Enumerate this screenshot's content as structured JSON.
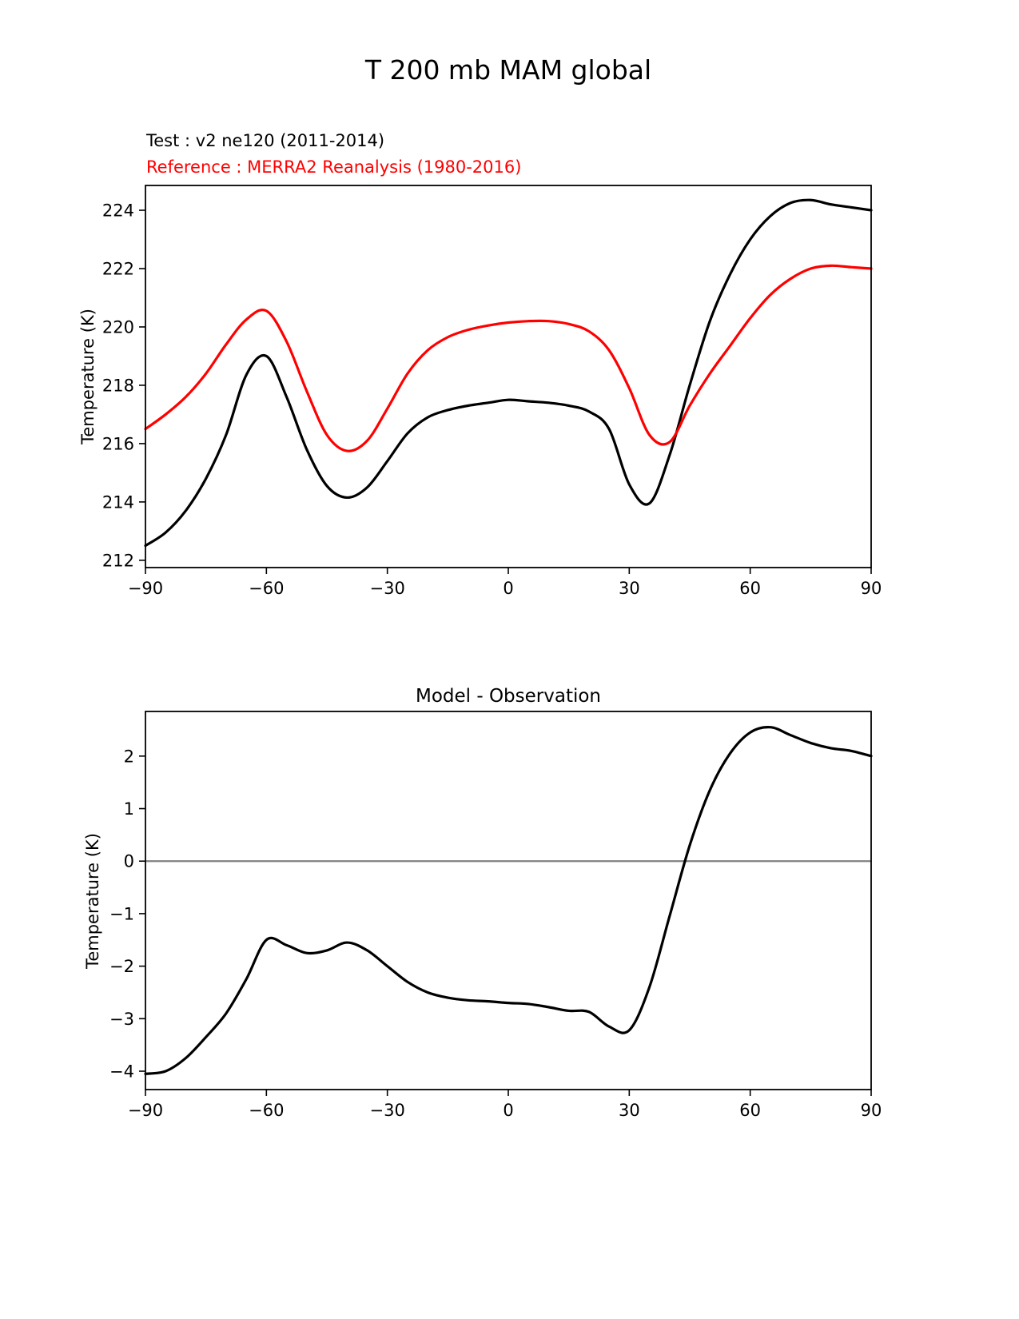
{
  "page": {
    "title": "T 200 mb MAM global",
    "background": "#ffffff"
  },
  "legend": {
    "test_label": "Test : v2 ne120 (2011-2014)",
    "test_color": "#000000",
    "reference_label": "Reference : MERRA2 Reanalysis (1980-2016)",
    "reference_color": "#ff0000"
  },
  "chart_data": [
    {
      "type": "line",
      "title": "",
      "xlabel": "",
      "ylabel": "Temperature (K)",
      "xlim": [
        -90,
        90
      ],
      "ylim": [
        211.75,
        224.85
      ],
      "xticks": [
        -90,
        -60,
        -30,
        0,
        30,
        60,
        90
      ],
      "yticks": [
        212,
        214,
        216,
        218,
        220,
        222,
        224
      ],
      "grid": false,
      "legend_position": "top-left-above",
      "x": [
        -90,
        -85,
        -80,
        -75,
        -70,
        -65,
        -60,
        -55,
        -50,
        -45,
        -40,
        -35,
        -30,
        -25,
        -20,
        -15,
        -10,
        -5,
        0,
        5,
        10,
        15,
        20,
        25,
        30,
        35,
        40,
        45,
        50,
        55,
        60,
        65,
        70,
        75,
        80,
        85,
        90
      ],
      "series": [
        {
          "name": "Test : v2 ne120 (2011-2014)",
          "color": "#000000",
          "values": [
            212.5,
            212.95,
            213.7,
            214.8,
            216.3,
            218.35,
            219.0,
            217.6,
            215.8,
            214.55,
            214.15,
            214.5,
            215.4,
            216.35,
            216.9,
            217.15,
            217.3,
            217.4,
            217.5,
            217.45,
            217.4,
            217.3,
            217.1,
            216.5,
            214.6,
            213.95,
            215.6,
            218.0,
            220.2,
            221.8,
            223.0,
            223.8,
            224.25,
            224.35,
            224.2,
            224.1,
            224.0
          ]
        },
        {
          "name": "Reference : MERRA2 Reanalysis (1980-2016)",
          "color": "#ff0000",
          "values": [
            216.5,
            217.0,
            217.6,
            218.4,
            219.4,
            220.25,
            220.55,
            219.5,
            217.8,
            216.3,
            215.75,
            216.1,
            217.2,
            218.4,
            219.2,
            219.65,
            219.9,
            220.05,
            220.15,
            220.2,
            220.2,
            220.1,
            219.85,
            219.2,
            217.9,
            216.3,
            216.05,
            217.3,
            218.4,
            219.35,
            220.3,
            221.1,
            221.65,
            222.0,
            222.1,
            222.05,
            222.0
          ]
        }
      ],
      "zero_line": false
    },
    {
      "type": "line",
      "title": "Model - Observation",
      "xlabel": "",
      "ylabel": "Temperature (K)",
      "xlim": [
        -90,
        90
      ],
      "ylim": [
        -4.35,
        2.85
      ],
      "xticks": [
        -90,
        -60,
        -30,
        0,
        30,
        60,
        90
      ],
      "yticks": [
        -4,
        -3,
        -2,
        -1,
        0,
        1,
        2
      ],
      "grid": false,
      "x": [
        -90,
        -85,
        -80,
        -75,
        -70,
        -65,
        -60,
        -55,
        -50,
        -45,
        -40,
        -35,
        -30,
        -25,
        -20,
        -15,
        -10,
        -5,
        0,
        5,
        10,
        15,
        20,
        25,
        30,
        35,
        40,
        45,
        50,
        55,
        60,
        65,
        70,
        75,
        80,
        85,
        90
      ],
      "series": [
        {
          "name": "Model - Observation",
          "color": "#000000",
          "values": [
            -4.05,
            -4.0,
            -3.75,
            -3.35,
            -2.9,
            -2.25,
            -1.5,
            -1.6,
            -1.75,
            -1.7,
            -1.55,
            -1.7,
            -2.0,
            -2.3,
            -2.5,
            -2.6,
            -2.65,
            -2.67,
            -2.7,
            -2.72,
            -2.78,
            -2.85,
            -2.87,
            -3.15,
            -3.22,
            -2.4,
            -1.05,
            0.3,
            1.35,
            2.05,
            2.45,
            2.55,
            2.4,
            2.25,
            2.15,
            2.1,
            2.0
          ]
        }
      ],
      "zero_line": true,
      "zero_line_color": "#808080"
    }
  ]
}
